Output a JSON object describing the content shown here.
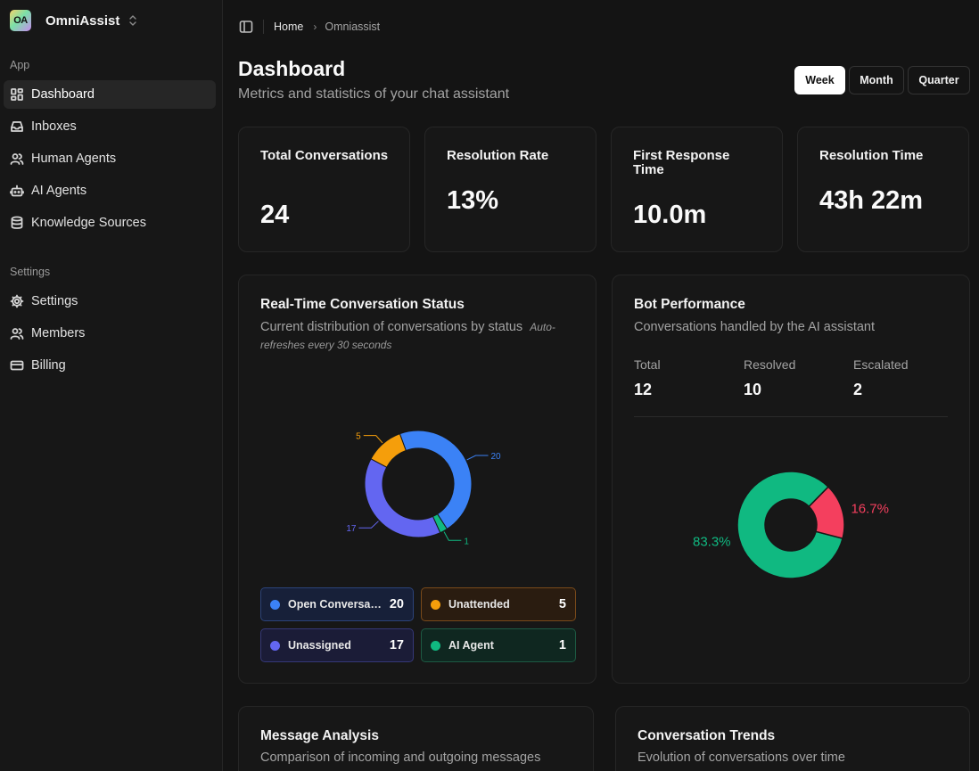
{
  "brand": {
    "logo_text": "OA",
    "name": "OmniAssist"
  },
  "sidebar": {
    "app_section": "App",
    "app_items": [
      {
        "label": "Dashboard",
        "icon": "dashboard-icon",
        "active": true
      },
      {
        "label": "Inboxes",
        "icon": "inbox-icon"
      },
      {
        "label": "Human Agents",
        "icon": "users-icon"
      },
      {
        "label": "AI Agents",
        "icon": "bot-icon"
      },
      {
        "label": "Knowledge Sources",
        "icon": "database-icon"
      }
    ],
    "settings_section": "Settings",
    "settings_items": [
      {
        "label": "Settings",
        "icon": "gear-icon"
      },
      {
        "label": "Members",
        "icon": "users-icon"
      },
      {
        "label": "Billing",
        "icon": "credit-card-icon"
      }
    ]
  },
  "breadcrumb": {
    "home": "Home",
    "current": "Omniassist"
  },
  "header": {
    "title": "Dashboard",
    "subtitle": "Metrics and statistics of your chat assistant",
    "periods": [
      {
        "label": "Week",
        "active": true
      },
      {
        "label": "Month"
      },
      {
        "label": "Quarter"
      }
    ]
  },
  "stats": [
    {
      "label": "Total Conversations",
      "value": "24"
    },
    {
      "label": "Resolution Rate",
      "value": "13%"
    },
    {
      "label": "First Response Time",
      "value": "10.0m"
    },
    {
      "label": "Resolution Time",
      "value": "43h 22m"
    }
  ],
  "realtime": {
    "title": "Real-Time Conversation Status",
    "subtitle": "Current distribution of conversations by status",
    "note": "Auto-refreshes every 30 seconds",
    "legend": [
      {
        "label": "Open Conversations",
        "value": "20",
        "color": "#3b82f6"
      },
      {
        "label": "Unattended",
        "value": "5",
        "color": "#f59e0b"
      },
      {
        "label": "Unassigned",
        "value": "17",
        "color": "#6366f1"
      },
      {
        "label": "AI Agent",
        "value": "1",
        "color": "#10b981"
      }
    ]
  },
  "bot": {
    "title": "Bot Performance",
    "subtitle": "Conversations handled by the AI assistant",
    "metrics": [
      {
        "label": "Total",
        "value": "12"
      },
      {
        "label": "Resolved",
        "value": "10"
      },
      {
        "label": "Escalated",
        "value": "2"
      }
    ]
  },
  "message_analysis": {
    "title": "Message Analysis",
    "subtitle": "Comparison of incoming and outgoing messages"
  },
  "trends": {
    "title": "Conversation Trends",
    "subtitle": "Evolution of conversations over time"
  },
  "chart_data": [
    {
      "type": "pie",
      "title": "Real-Time Conversation Status",
      "categories": [
        "Open Conversations",
        "AI Agent",
        "Unassigned",
        "Unattended"
      ],
      "values": [
        20,
        1,
        17,
        5
      ],
      "labels": [
        "20",
        "1",
        "17",
        "5"
      ],
      "colors": [
        "#3b82f6",
        "#10b981",
        "#6366f1",
        "#f59e0b"
      ],
      "donut": true
    },
    {
      "type": "pie",
      "title": "Bot Performance",
      "categories": [
        "Resolved",
        "Escalated"
      ],
      "values": [
        83.3,
        16.7
      ],
      "labels": [
        "83.3%",
        "16.7%"
      ],
      "colors": [
        "#10b981",
        "#f43f5e"
      ],
      "donut": true
    }
  ]
}
